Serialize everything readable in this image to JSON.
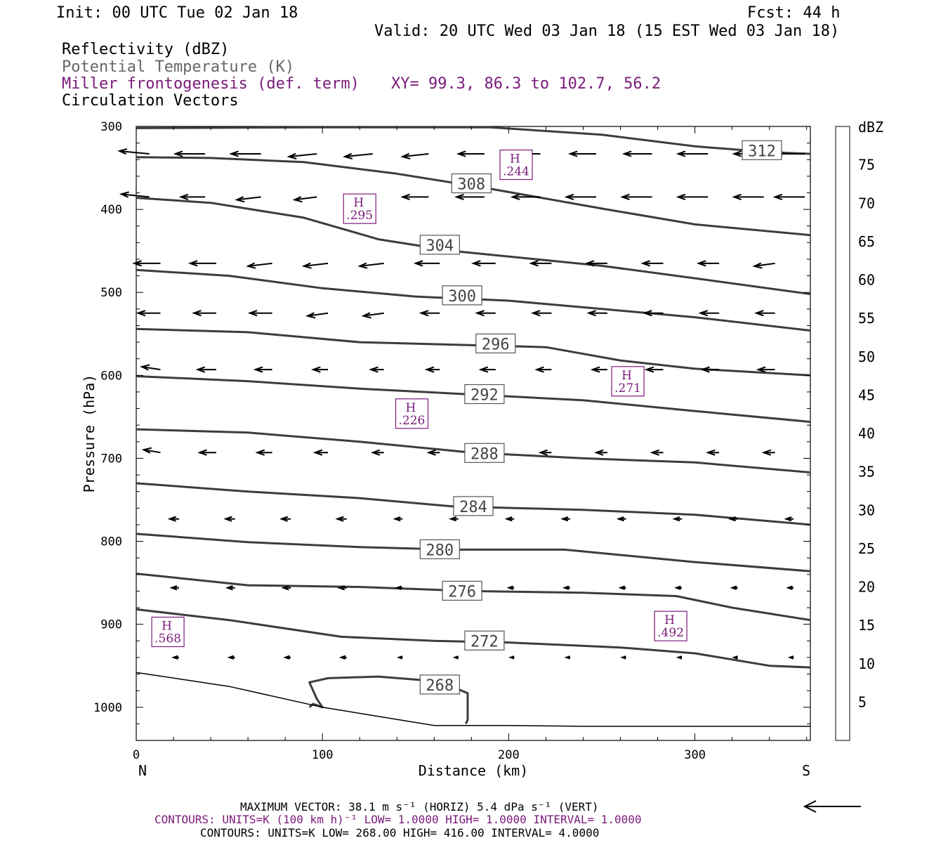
{
  "header": {
    "init": "Init: 00 UTC Tue 02 Jan 18",
    "fcst": "Fcst:   44 h",
    "valid": "Valid: 20 UTC Wed 03 Jan 18 (15 EST Wed 03 Jan 18)",
    "field1": "Reflectivity (dBZ)",
    "field2": "Potential Temperature (K)",
    "field3": "Miller frontogenesis (def. term)",
    "xy": "XY=  99.3, 86.3 to 102.7, 56.2",
    "field4": "Circulation Vectors"
  },
  "colors": {
    "theta": "#3c3c3c",
    "fronto": "#7a1a7a",
    "field2_text": "#666666"
  },
  "chart_data": {
    "type": "cross-section",
    "xlabel": "Distance (km)",
    "ylabel": "Pressure (hPa)",
    "xlim": [
      0,
      362
    ],
    "ylim": [
      300,
      1040
    ],
    "x_ticks": [
      0,
      100,
      200,
      300
    ],
    "y_ticks": [
      300,
      400,
      500,
      600,
      700,
      800,
      900,
      1000
    ],
    "x_end_labels": {
      "left": "N",
      "right": "S"
    },
    "grid": false,
    "theta_contours": [
      {
        "label": "312",
        "label_at": [
          336,
          329
        ],
        "points": [
          [
            0,
            302
          ],
          [
            100,
            301
          ],
          [
            190,
            301
          ],
          [
            250,
            310
          ],
          [
            300,
            324
          ],
          [
            340,
            331
          ],
          [
            362,
            333
          ]
        ]
      },
      {
        "label": "308",
        "label_at": [
          180,
          369
        ],
        "points": [
          [
            0,
            337
          ],
          [
            40,
            338
          ],
          [
            90,
            343
          ],
          [
            140,
            357
          ],
          [
            190,
            375
          ],
          [
            250,
            399
          ],
          [
            300,
            418
          ],
          [
            362,
            431
          ]
        ]
      },
      {
        "label": "304",
        "label_at": [
          163,
          443
        ],
        "points": [
          [
            0,
            386
          ],
          [
            40,
            392
          ],
          [
            90,
            410
          ],
          [
            130,
            436
          ],
          [
            170,
            450
          ],
          [
            250,
            468
          ],
          [
            300,
            483
          ],
          [
            362,
            502
          ]
        ]
      },
      {
        "label": "300",
        "label_at": [
          175,
          504
        ],
        "points": [
          [
            0,
            473
          ],
          [
            50,
            480
          ],
          [
            100,
            495
          ],
          [
            150,
            505
          ],
          [
            200,
            510
          ],
          [
            250,
            520
          ],
          [
            300,
            530
          ],
          [
            362,
            546
          ]
        ]
      },
      {
        "label": "296",
        "label_at": [
          193,
          562
        ],
        "points": [
          [
            0,
            544
          ],
          [
            60,
            548
          ],
          [
            120,
            560
          ],
          [
            170,
            563
          ],
          [
            220,
            566
          ],
          [
            260,
            582
          ],
          [
            300,
            592
          ],
          [
            362,
            600
          ]
        ]
      },
      {
        "label": "292",
        "label_at": [
          187,
          623
        ],
        "points": [
          [
            0,
            601
          ],
          [
            60,
            607
          ],
          [
            120,
            616
          ],
          [
            180,
            623
          ],
          [
            240,
            630
          ],
          [
            300,
            643
          ],
          [
            362,
            656
          ]
        ]
      },
      {
        "label": "288",
        "label_at": [
          187,
          694
        ],
        "points": [
          [
            0,
            665
          ],
          [
            60,
            669
          ],
          [
            120,
            680
          ],
          [
            180,
            693
          ],
          [
            240,
            700
          ],
          [
            300,
            705
          ],
          [
            362,
            717
          ]
        ]
      },
      {
        "label": "284",
        "label_at": [
          181,
          758
        ],
        "points": [
          [
            0,
            730
          ],
          [
            60,
            740
          ],
          [
            120,
            748
          ],
          [
            170,
            758
          ],
          [
            240,
            762
          ],
          [
            300,
            768
          ],
          [
            362,
            780
          ]
        ]
      },
      {
        "label": "280",
        "label_at": [
          163,
          810
        ],
        "points": [
          [
            0,
            791
          ],
          [
            60,
            801
          ],
          [
            120,
            807
          ],
          [
            170,
            810
          ],
          [
            230,
            810
          ],
          [
            300,
            825
          ],
          [
            362,
            836
          ]
        ]
      },
      {
        "label": "276",
        "label_at": [
          175,
          860
        ],
        "points": [
          [
            0,
            839
          ],
          [
            60,
            853
          ],
          [
            120,
            855
          ],
          [
            180,
            860
          ],
          [
            240,
            862
          ],
          [
            290,
            866
          ],
          [
            320,
            880
          ],
          [
            362,
            895
          ]
        ]
      },
      {
        "label": "272",
        "label_at": [
          187,
          920
        ],
        "points": [
          [
            0,
            882
          ],
          [
            50,
            895
          ],
          [
            110,
            915
          ],
          [
            160,
            920
          ],
          [
            200,
            922
          ],
          [
            260,
            928
          ],
          [
            300,
            935
          ],
          [
            340,
            950
          ],
          [
            362,
            952
          ]
        ]
      },
      {
        "label": "268",
        "label_at": [
          163,
          973
        ],
        "points": [
          [
            93,
            1000
          ],
          [
            95,
            996
          ],
          [
            100,
            1000
          ],
          [
            97,
            990
          ],
          [
            93,
            970
          ],
          [
            103,
            965
          ],
          [
            130,
            963
          ],
          [
            163,
            969
          ],
          [
            178,
            983
          ],
          [
            178,
            1015
          ],
          [
            177,
            1020
          ]
        ]
      }
    ],
    "terrain": [
      [
        0,
        958
      ],
      [
        50,
        975
      ],
      [
        100,
        1000
      ],
      [
        160,
        1022
      ],
      [
        200,
        1022
      ],
      [
        240,
        1023
      ],
      [
        300,
        1023
      ],
      [
        362,
        1023
      ]
    ],
    "fronto_highs": [
      {
        "label": "H",
        "value": ".244",
        "at": [
          204,
          347
        ]
      },
      {
        "label": "H",
        "value": ".295",
        "at": [
          120,
          400
        ]
      },
      {
        "label": "H",
        "value": ".271",
        "at": [
          264,
          608
        ]
      },
      {
        "label": "H",
        "value": ".226",
        "at": [
          148,
          647
        ]
      },
      {
        "label": "H",
        "value": ".568",
        "at": [
          17,
          910
        ]
      },
      {
        "label": "H",
        "value": ".492",
        "at": [
          287,
          903
        ]
      }
    ],
    "vector_rows": [
      {
        "p": 333,
        "xs": [
          7,
          37,
          67,
          97,
          127,
          157,
          187,
          217,
          247,
          277,
          307,
          337,
          359
        ],
        "dx": [
          -16,
          -16,
          -16,
          -15,
          -15,
          -14,
          -14,
          -14,
          -14,
          -15,
          -16,
          -16,
          -16
        ],
        "dy": [
          -1,
          0,
          0,
          1,
          1,
          1,
          0,
          0,
          0,
          0,
          0,
          0,
          0
        ]
      },
      {
        "p": 385,
        "xs": [
          7,
          37,
          67,
          97,
          127,
          157,
          187,
          217,
          247,
          277,
          307,
          337,
          359
        ],
        "dx": [
          -15,
          -13,
          -13,
          -12,
          -12,
          -14,
          -15,
          -15,
          -16,
          -16,
          -16,
          -16,
          -16
        ],
        "dy": [
          -1,
          0,
          1,
          1,
          0,
          0,
          0,
          0,
          0,
          0,
          0,
          0,
          0
        ]
      },
      {
        "p": 465,
        "xs": [
          13,
          43,
          73,
          103,
          133,
          163,
          193,
          223,
          253,
          283,
          313,
          343
        ],
        "dx": [
          -14,
          -14,
          -13,
          -13,
          -13,
          -13,
          -12,
          -11,
          -11,
          -11,
          -11,
          -11
        ],
        "dy": [
          0,
          0,
          1,
          1,
          1,
          0,
          0,
          0,
          0,
          0,
          0,
          1
        ]
      },
      {
        "p": 525,
        "xs": [
          13,
          43,
          73,
          103,
          133,
          163,
          193,
          223,
          253,
          283,
          313,
          343
        ],
        "dx": [
          -12,
          -12,
          -12,
          -11,
          -11,
          -10,
          -10,
          -10,
          -10,
          -10,
          -10,
          -10
        ],
        "dy": [
          0,
          0,
          0,
          1,
          1,
          0,
          0,
          0,
          0,
          0,
          0,
          0
        ]
      },
      {
        "p": 593,
        "xs": [
          13,
          43,
          73,
          103,
          133,
          163,
          193,
          223,
          253,
          283,
          313,
          343
        ],
        "dx": [
          -10,
          -10,
          -9,
          -8,
          -7,
          -7,
          -8,
          -8,
          -8,
          -9,
          -9,
          -9
        ],
        "dy": [
          -1,
          0,
          0,
          0,
          0,
          0,
          0,
          0,
          0,
          0,
          0,
          0
        ]
      },
      {
        "p": 693,
        "xs": [
          13,
          43,
          73,
          103,
          133,
          163,
          193,
          223,
          253,
          283,
          313,
          343
        ],
        "dx": [
          -9,
          -9,
          -8,
          -7,
          -6,
          -6,
          -6,
          -6,
          -6,
          -6,
          -6,
          -6
        ],
        "dy": [
          -1,
          0,
          0,
          0,
          0,
          0,
          0,
          0,
          0,
          0,
          0,
          0
        ]
      },
      {
        "p": 773,
        "xs": [
          23,
          53,
          83,
          113,
          143,
          173,
          203,
          233,
          263,
          293,
          323,
          353
        ],
        "dx": [
          -5,
          -5,
          -5,
          -5,
          -4,
          -4,
          -4,
          -4,
          -4,
          -4,
          -4,
          -4
        ],
        "dy": [
          0,
          0,
          0,
          0,
          0,
          0,
          0,
          0,
          0,
          0,
          0,
          0
        ]
      },
      {
        "p": 856,
        "xs": [
          23,
          53,
          83,
          113,
          143,
          173,
          203,
          233,
          263,
          293,
          323,
          353
        ],
        "dx": [
          -4,
          -4,
          -4,
          -4,
          -3,
          -3,
          -3,
          -3,
          -3,
          -3,
          -3,
          -3
        ],
        "dy": [
          0,
          0,
          0,
          0,
          0,
          0,
          0,
          0,
          0,
          0,
          0,
          0
        ]
      },
      {
        "p": 940,
        "xs": [
          23,
          53,
          83,
          113,
          143,
          173,
          203,
          233,
          263,
          293,
          323,
          353
        ],
        "dx": [
          -3,
          -3,
          -3,
          -3,
          -2,
          -2,
          -2,
          -2,
          -2,
          -2,
          -2,
          -2
        ],
        "dy": [
          0,
          0,
          0,
          0,
          0,
          0,
          0,
          0,
          0,
          0,
          0,
          0
        ]
      }
    ],
    "colorbar": {
      "title": "dBZ",
      "labels": [
        "75",
        "70",
        "65",
        "60",
        "55",
        "50",
        "45",
        "40",
        "35",
        "30",
        "25",
        "20",
        "15",
        "10",
        "5"
      ],
      "colors": [
        "#ffffff",
        "#00e5e5",
        "#0099e6",
        "#1818d8",
        "#00ee00",
        "#00c000",
        "#008800",
        "#ffff00",
        "#e6bb00",
        "#ff8800",
        "#ff0000",
        "#d60000",
        "#b80000",
        "#ff00ff",
        "#9955c9",
        "#ffffff"
      ]
    }
  },
  "footer": {
    "max_vector": "MAXIMUM VECTOR:  38.1 m s⁻¹ (HORIZ)          5.4 dPa s⁻¹ (VERT)",
    "contours1": "CONTOURS:  UNITS=K (100 km h)⁻¹  LOW=   1.0000       HIGH=   1.0000       INTERVAL=    1.0000",
    "contours2": "CONTOURS:  UNITS=K  LOW=   268.00       HIGH=   416.00       INTERVAL=    4.0000"
  }
}
